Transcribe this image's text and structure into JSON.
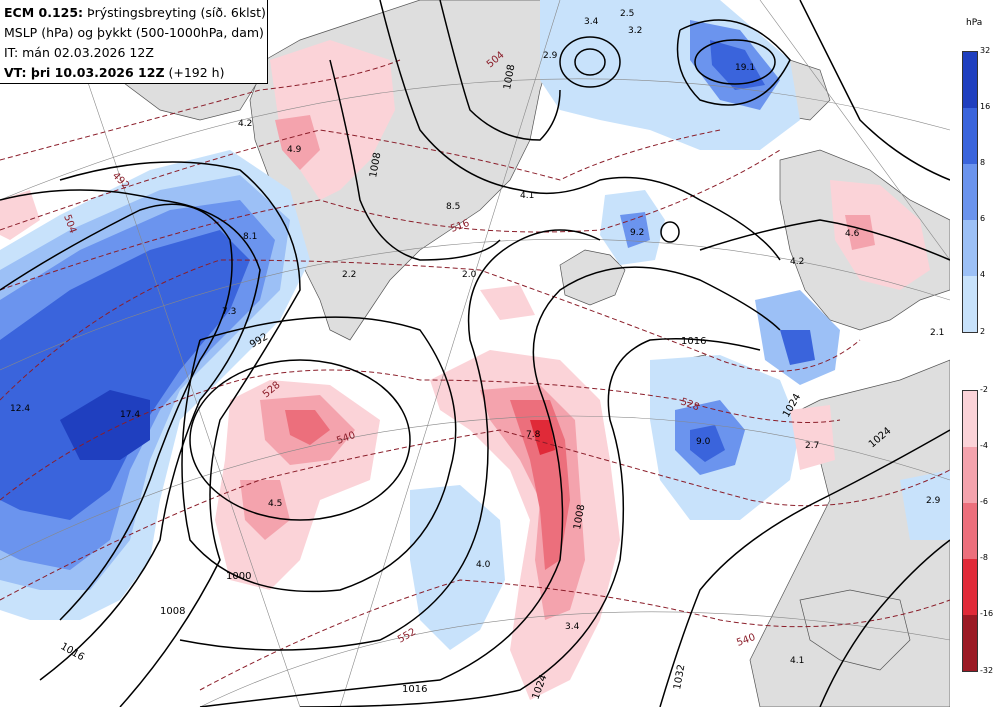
{
  "header": {
    "line1_bold": "ECM 0.125:",
    "line1_rest": " Þrýstingsbreyting (síð. 6klst)",
    "line2": "MSLP (hPa) og þykkt (500-1000hPa, dam)",
    "line3": "IT: mán 02.03.2026 12Z",
    "line4_bold": "VT: þri 10.03.2026 12Z",
    "line4_rest": " (+192 h)"
  },
  "legend": {
    "unit": "hPa",
    "blue_ticks": [
      "32",
      "16",
      "8",
      "6",
      "4",
      "2"
    ],
    "red_ticks": [
      "-2",
      "-4",
      "-6",
      "-8",
      "-16",
      "-32"
    ],
    "blue_colors": [
      "#1f3fbf",
      "#3a64dc",
      "#6b94ee",
      "#9cc0f6",
      "#c8e2fb"
    ],
    "red_colors": [
      "#fbd3d8",
      "#f4a3ad",
      "#ec6f7c",
      "#e02a38",
      "#9b1a24"
    ]
  },
  "map_labels": {
    "pressure_change": [
      "3.4",
      "2.5",
      "3.2",
      "19.1",
      "2.9",
      "4.2",
      "4.9",
      "8.5",
      "4.1",
      "9.2",
      "8.1",
      "2.2",
      "2.0",
      "4.2",
      "4.6",
      "7.3",
      "2.1",
      "12.4",
      "17.4",
      "7.8",
      "9.0",
      "2.7",
      "4.5",
      "2.9",
      "4.0",
      "3.4",
      "4.1"
    ],
    "isobars": [
      "1008",
      "1008",
      "992",
      "1000",
      "1008",
      "1016",
      "1016",
      "1016",
      "1024",
      "1024",
      "1024",
      "1032",
      "1008"
    ],
    "thickness": [
      "504",
      "492",
      "504",
      "516",
      "528",
      "540",
      "552",
      "540",
      "528"
    ]
  }
}
